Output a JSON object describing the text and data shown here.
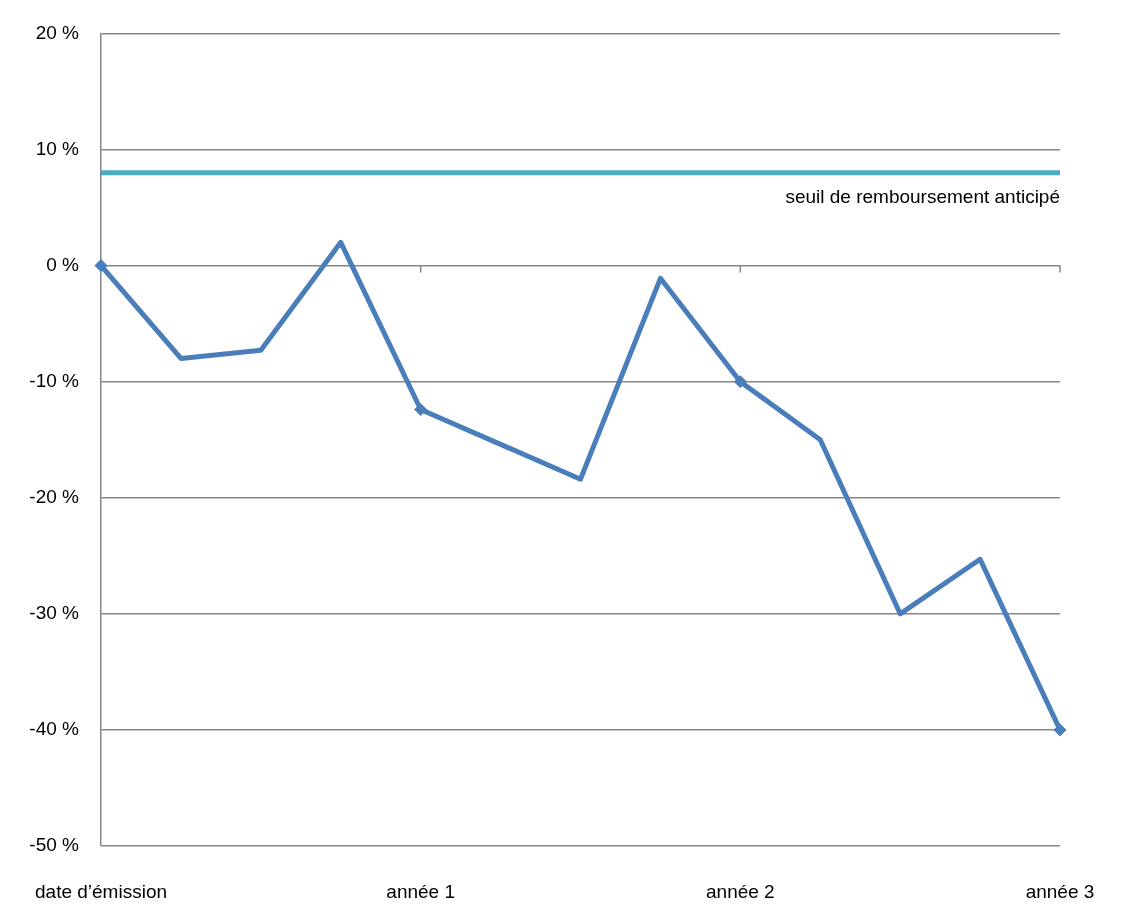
{
  "chart_data": {
    "type": "line",
    "categories": [
      "date d’émission",
      null,
      null,
      null,
      "année 1",
      null,
      null,
      null,
      "année 2",
      null,
      null,
      null,
      "année 3"
    ],
    "series": [
      {
        "color": "#4a7ebb",
        "marker": "none",
        "values": [
          0,
          -8,
          -7.3,
          2,
          -12.4,
          -15.4,
          -18.4,
          -1.1,
          -10,
          -15,
          -30,
          -25.3,
          -40
        ]
      },
      {
        "type": "scatter",
        "color": "#4a7ebb",
        "marker": "diamond",
        "x": [
          "date d’émission",
          "année 1",
          "année 2",
          "année 3"
        ],
        "values": [
          0,
          -12.4,
          -10,
          -40
        ]
      }
    ],
    "ylim": [
      -50,
      20
    ],
    "yticks": [
      {
        "value": -50,
        "label": "-50 %"
      },
      {
        "value": -40,
        "label": "-40 %"
      },
      {
        "value": -30,
        "label": "-30 %"
      },
      {
        "value": -20,
        "label": "-20 %"
      },
      {
        "value": -10,
        "label": "-10 %"
      },
      {
        "value": 0,
        "label": "0 %"
      },
      {
        "value": 10,
        "label": "10 %"
      },
      {
        "value": 20,
        "label": "20 %"
      }
    ],
    "ref_lines": [
      {
        "axis": "y",
        "value": 8,
        "label": "seuil de remboursement anticipé",
        "color": "#4bacc6"
      }
    ],
    "grid": "y",
    "legend": false,
    "line_style": "solid"
  }
}
